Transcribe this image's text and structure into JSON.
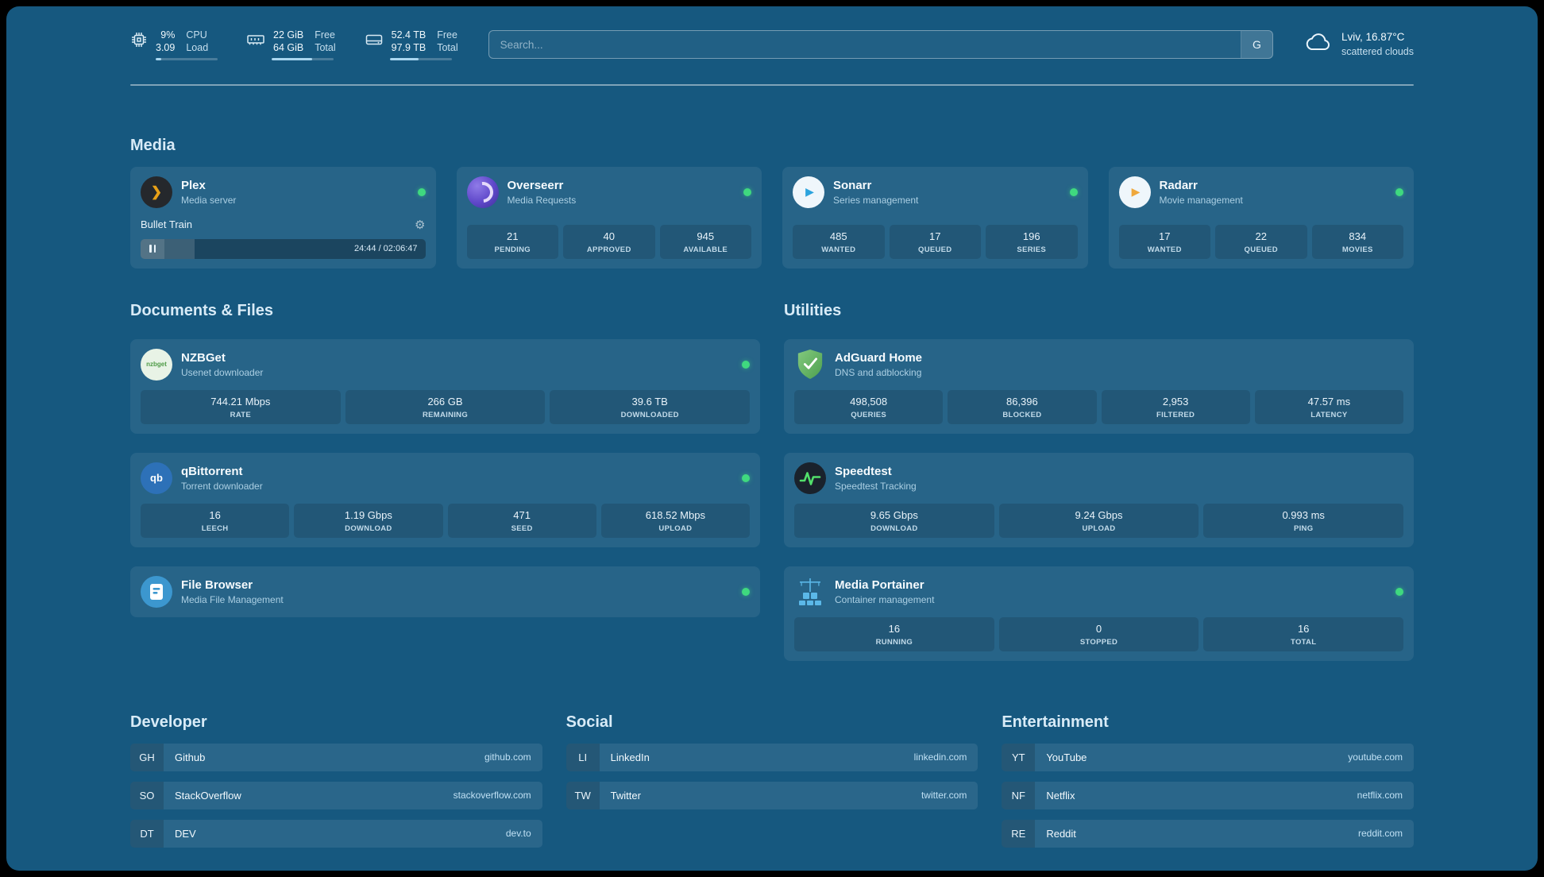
{
  "theme": {
    "background": "#16587F",
    "accent_green": "#3FD97F"
  },
  "topbar": {
    "resources": [
      {
        "id": "cpu",
        "value_top": "9%",
        "value_bottom": "3.09",
        "label_top": "CPU",
        "label_bottom": "Load",
        "progress_pct": 9
      },
      {
        "id": "memory",
        "value_top": "22 GiB",
        "value_bottom": "64 GiB",
        "label_top": "Free",
        "label_bottom": "Total",
        "progress_pct": 66
      },
      {
        "id": "disk",
        "value_top": "52.4 TB",
        "value_bottom": "97.9 TB",
        "label_top": "Free",
        "label_bottom": "Total",
        "progress_pct": 47
      }
    ],
    "search": {
      "placeholder": "Search...",
      "provider_label": "G"
    },
    "weather": {
      "location": "Lviv, 16.87°C",
      "condition": "scattered clouds"
    }
  },
  "sections": {
    "media": {
      "title": "Media",
      "plex": {
        "name": "Plex",
        "subtitle": "Media server",
        "status": "online",
        "now_playing": {
          "title": "Bullet Train",
          "time": "24:44 / 02:06:47",
          "progress_pct": 19
        }
      },
      "overseerr": {
        "name": "Overseerr",
        "subtitle": "Media Requests",
        "status": "online",
        "stats": [
          {
            "value": "21",
            "label": "PENDING"
          },
          {
            "value": "40",
            "label": "APPROVED"
          },
          {
            "value": "945",
            "label": "AVAILABLE"
          }
        ]
      },
      "sonarr": {
        "name": "Sonarr",
        "subtitle": "Series management",
        "status": "online",
        "stats": [
          {
            "value": "485",
            "label": "WANTED"
          },
          {
            "value": "17",
            "label": "QUEUED"
          },
          {
            "value": "196",
            "label": "SERIES"
          }
        ]
      },
      "radarr": {
        "name": "Radarr",
        "subtitle": "Movie management",
        "status": "online",
        "stats": [
          {
            "value": "17",
            "label": "WANTED"
          },
          {
            "value": "22",
            "label": "QUEUED"
          },
          {
            "value": "834",
            "label": "MOVIES"
          }
        ]
      }
    },
    "documents": {
      "title": "Documents & Files",
      "nzbget": {
        "name": "NZBGet",
        "subtitle": "Usenet downloader",
        "status": "online",
        "icon_text": "nzbget",
        "stats": [
          {
            "value": "744.21 Mbps",
            "label": "RATE"
          },
          {
            "value": "266 GB",
            "label": "REMAINING"
          },
          {
            "value": "39.6 TB",
            "label": "DOWNLOADED"
          }
        ]
      },
      "qbittorrent": {
        "name": "qBittorrent",
        "subtitle": "Torrent downloader",
        "status": "online",
        "icon_text": "qb",
        "stats": [
          {
            "value": "16",
            "label": "LEECH"
          },
          {
            "value": "1.19 Gbps",
            "label": "DOWNLOAD"
          },
          {
            "value": "471",
            "label": "SEED"
          },
          {
            "value": "618.52 Mbps",
            "label": "UPLOAD"
          }
        ]
      },
      "filebrowser": {
        "name": "File Browser",
        "subtitle": "Media File Management",
        "status": "online"
      }
    },
    "utilities": {
      "title": "Utilities",
      "adguard": {
        "name": "AdGuard Home",
        "subtitle": "DNS and adblocking",
        "stats": [
          {
            "value": "498,508",
            "label": "QUERIES"
          },
          {
            "value": "86,396",
            "label": "BLOCKED"
          },
          {
            "value": "2,953",
            "label": "FILTERED"
          },
          {
            "value": "47.57 ms",
            "label": "LATENCY"
          }
        ]
      },
      "speedtest": {
        "name": "Speedtest",
        "subtitle": "Speedtest Tracking",
        "stats": [
          {
            "value": "9.65 Gbps",
            "label": "DOWNLOAD"
          },
          {
            "value": "9.24 Gbps",
            "label": "UPLOAD"
          },
          {
            "value": "0.993 ms",
            "label": "PING"
          }
        ]
      },
      "portainer": {
        "name": "Media Portainer",
        "subtitle": "Container management",
        "status": "online",
        "stats": [
          {
            "value": "16",
            "label": "RUNNING"
          },
          {
            "value": "0",
            "label": "STOPPED"
          },
          {
            "value": "16",
            "label": "TOTAL"
          }
        ]
      }
    }
  },
  "bookmarks": [
    {
      "title": "Developer",
      "items": [
        {
          "abbr": "GH",
          "name": "Github",
          "domain": "github.com"
        },
        {
          "abbr": "SO",
          "name": "StackOverflow",
          "domain": "stackoverflow.com"
        },
        {
          "abbr": "DT",
          "name": "DEV",
          "domain": "dev.to"
        }
      ]
    },
    {
      "title": "Social",
      "items": [
        {
          "abbr": "LI",
          "name": "LinkedIn",
          "domain": "linkedin.com"
        },
        {
          "abbr": "TW",
          "name": "Twitter",
          "domain": "twitter.com"
        }
      ]
    },
    {
      "title": "Entertainment",
      "items": [
        {
          "abbr": "YT",
          "name": "YouTube",
          "domain": "youtube.com"
        },
        {
          "abbr": "NF",
          "name": "Netflix",
          "domain": "netflix.com"
        },
        {
          "abbr": "RE",
          "name": "Reddit",
          "domain": "reddit.com"
        }
      ]
    }
  ]
}
